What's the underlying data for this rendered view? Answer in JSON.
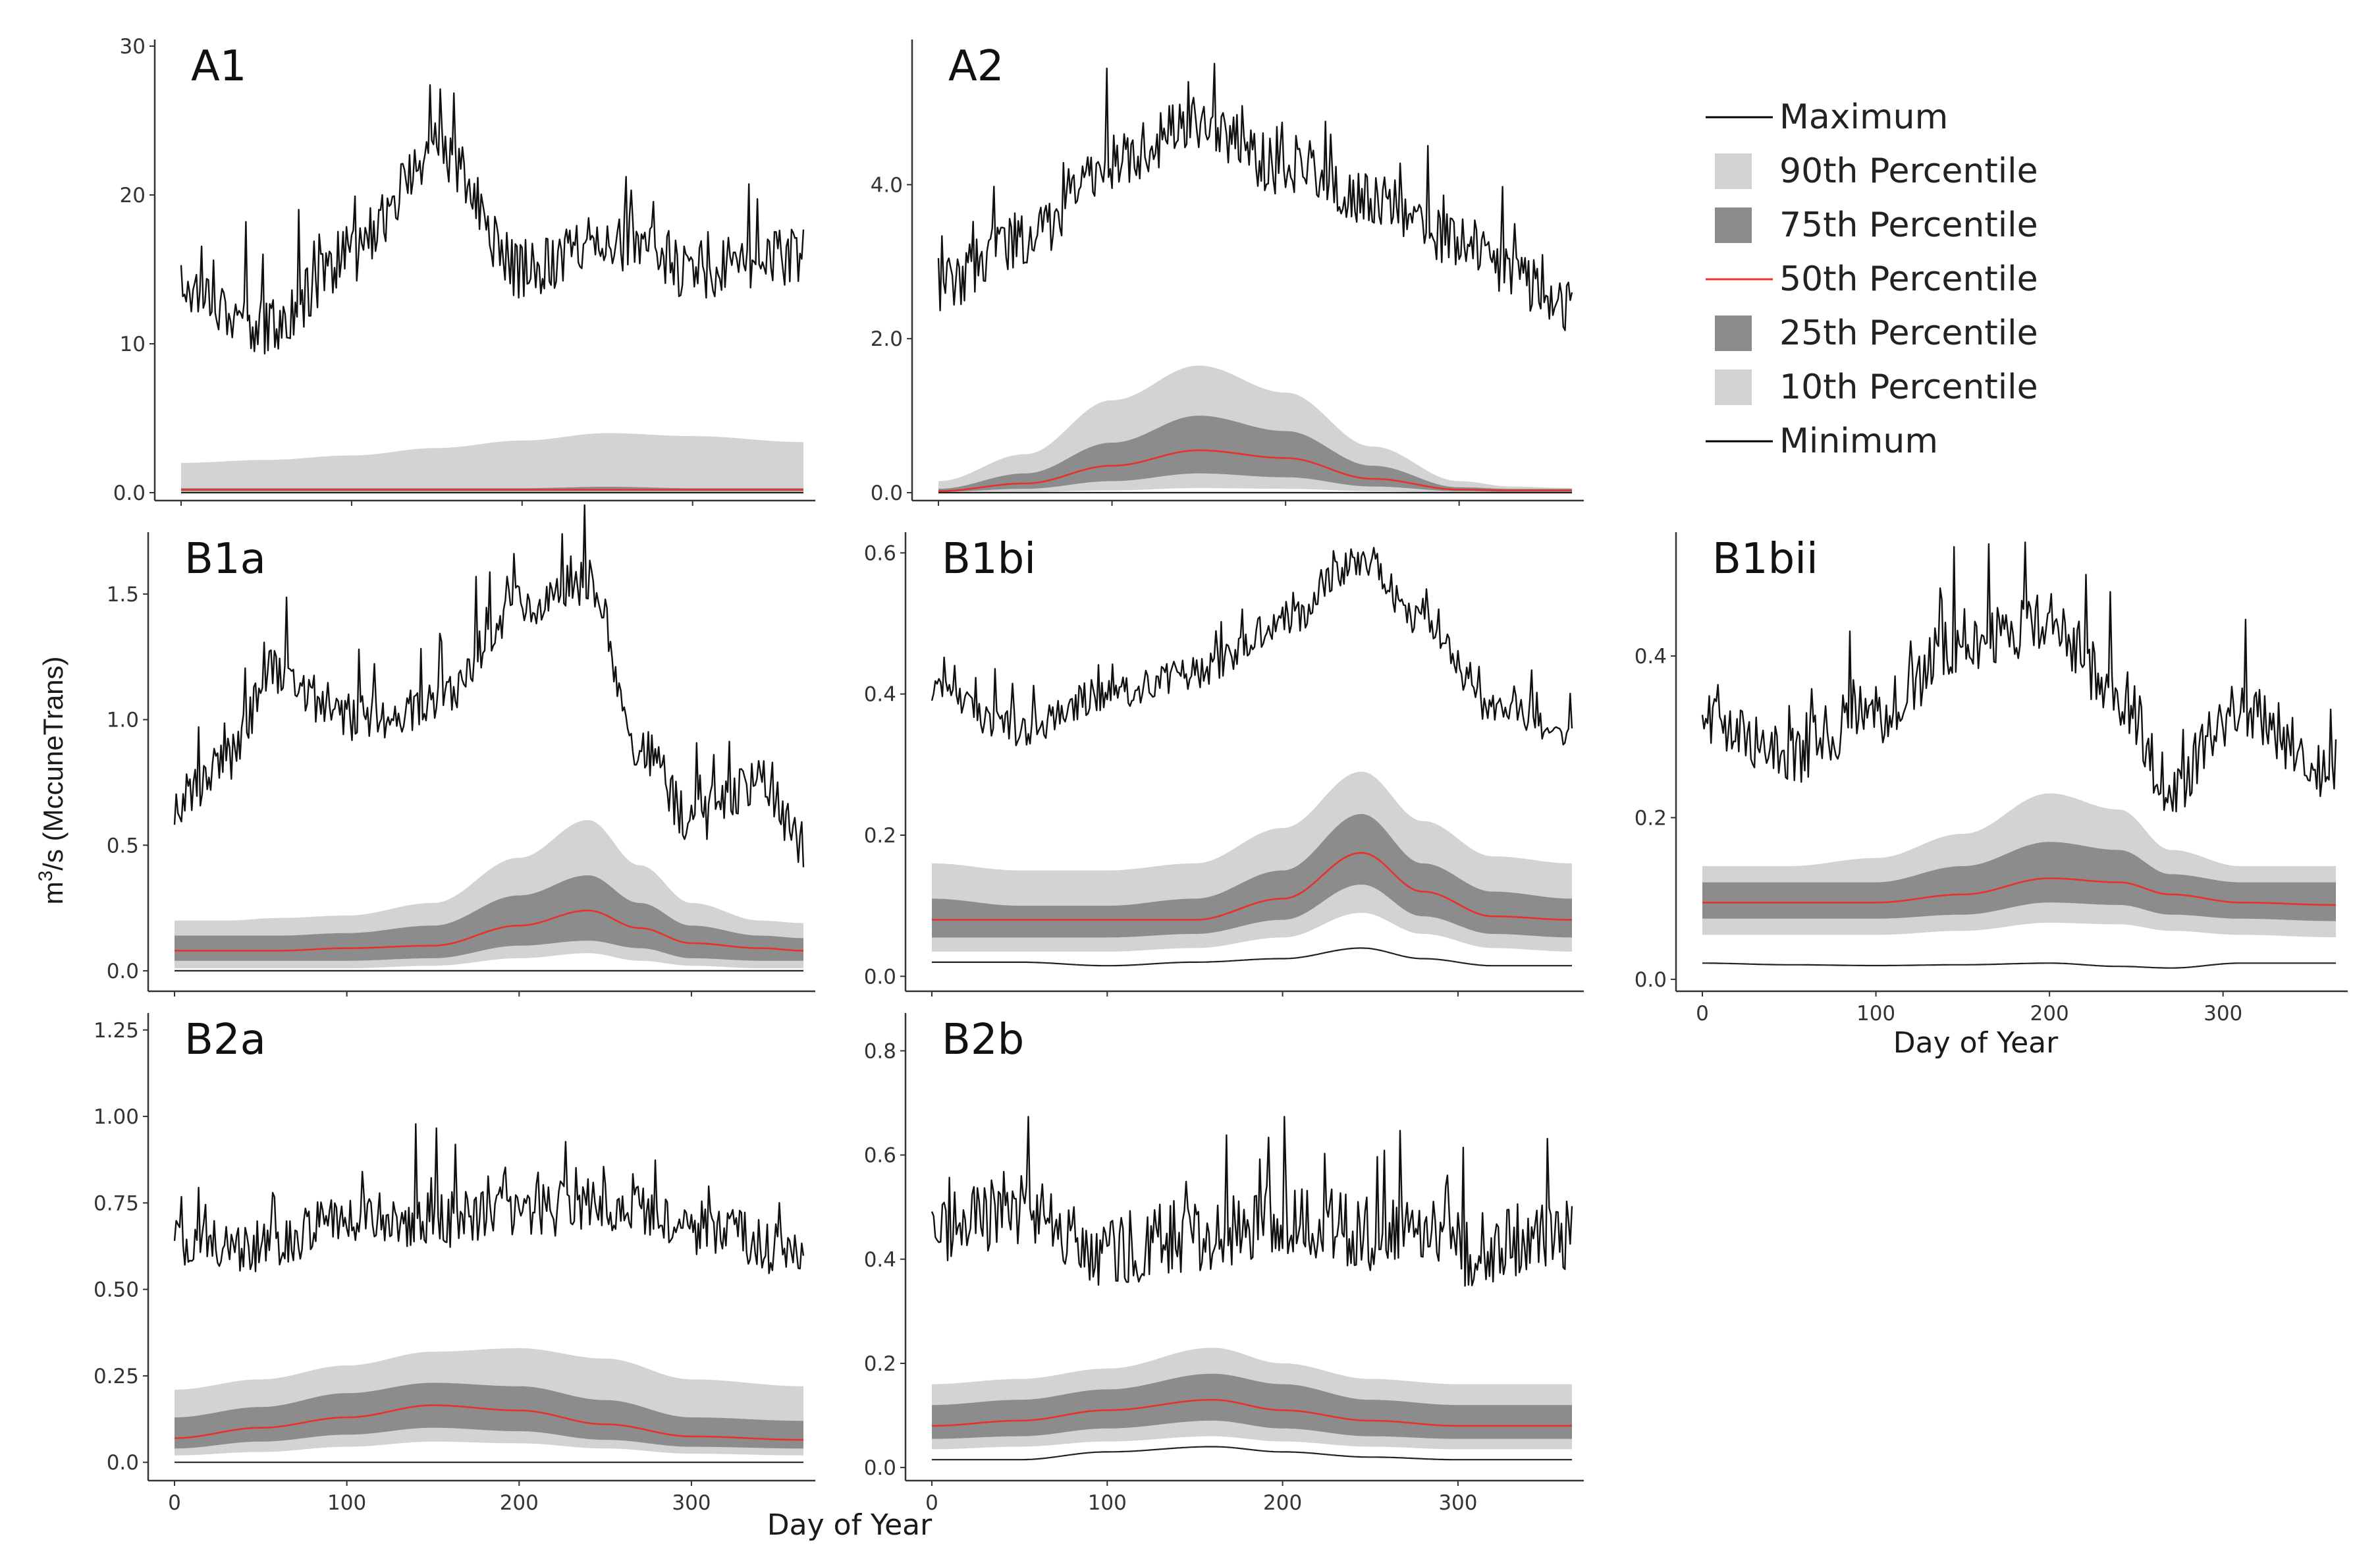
{
  "figure": {
    "ylabel_main": "m",
    "ylabel_sup": "3",
    "ylabel_rest": "/s (MccuneTrans)",
    "xlabel_left": "Day of Year",
    "xlabel_right": "Day of Year"
  },
  "legend": {
    "items": [
      {
        "label": "Maximum",
        "kind": "line",
        "color": "#000000"
      },
      {
        "label": "90th Percentile",
        "kind": "box",
        "color": "#d3d3d3"
      },
      {
        "label": "75th Percentile",
        "kind": "box",
        "color": "#8c8c8c"
      },
      {
        "label": "50th Percentile",
        "kind": "line",
        "color": "#e8312a"
      },
      {
        "label": "25th Percentile",
        "kind": "box",
        "color": "#8c8c8c"
      },
      {
        "label": "10th Percentile",
        "kind": "box",
        "color": "#d3d3d3"
      },
      {
        "label": "Minimum",
        "kind": "line",
        "color": "#000000"
      }
    ]
  },
  "chart_data": [
    {
      "panel": "A1",
      "type": "area",
      "xlabel": "Day of Year",
      "ylabel": "m3/s (MccuneTrans)",
      "xlim": [
        0,
        365
      ],
      "ylim": [
        0,
        30
      ],
      "xticks": [
        0,
        100,
        200,
        300
      ],
      "yticks": [
        0,
        10,
        20,
        30
      ],
      "ytick_labels": [
        "0.0",
        "10",
        "20",
        "30"
      ],
      "x": [
        0,
        50,
        100,
        150,
        200,
        250,
        300,
        365
      ],
      "series": [
        {
          "name": "Maximum",
          "values": [
            14,
            11,
            16,
            23,
            15,
            17,
            15,
            16
          ],
          "noise": 2.5
        },
        {
          "name": "90th Percentile",
          "values": [
            2.0,
            2.2,
            2.5,
            3.0,
            3.5,
            4.0,
            3.8,
            3.4
          ]
        },
        {
          "name": "75th Percentile",
          "values": [
            0.3,
            0.3,
            0.3,
            0.3,
            0.3,
            0.4,
            0.3,
            0.3
          ]
        },
        {
          "name": "50th Percentile",
          "values": [
            0.2,
            0.2,
            0.2,
            0.2,
            0.2,
            0.2,
            0.2,
            0.2
          ]
        },
        {
          "name": "25th Percentile",
          "values": [
            0.1,
            0.1,
            0.1,
            0.1,
            0.1,
            0.1,
            0.1,
            0.1
          ]
        },
        {
          "name": "10th Percentile",
          "values": [
            0.05,
            0.05,
            0.05,
            0.05,
            0.05,
            0.05,
            0.05,
            0.05
          ]
        },
        {
          "name": "Minimum",
          "values": [
            0,
            0,
            0,
            0,
            0,
            0,
            0,
            0
          ]
        }
      ]
    },
    {
      "panel": "A2",
      "type": "area",
      "xlabel": "Day of Year",
      "ylabel": "m3/s (MccuneTrans)",
      "xlim": [
        0,
        365
      ],
      "ylim": [
        0,
        5.8
      ],
      "xticks": [
        0,
        100,
        200,
        300
      ],
      "yticks": [
        0,
        2,
        4
      ],
      "ytick_labels": [
        "0.0",
        "2.0",
        "4.0"
      ],
      "x": [
        0,
        50,
        100,
        150,
        200,
        250,
        300,
        330,
        365
      ],
      "series": [
        {
          "name": "Maximum",
          "values": [
            2.7,
            3.3,
            4.3,
            4.8,
            4.2,
            3.8,
            3.3,
            2.8,
            2.4
          ],
          "noise": 0.45
        },
        {
          "name": "90th Percentile",
          "values": [
            0.15,
            0.5,
            1.2,
            1.65,
            1.3,
            0.6,
            0.15,
            0.08,
            0.06
          ]
        },
        {
          "name": "75th Percentile",
          "values": [
            0.05,
            0.25,
            0.65,
            1.0,
            0.8,
            0.35,
            0.07,
            0.05,
            0.05
          ]
        },
        {
          "name": "50th Percentile",
          "values": [
            0.02,
            0.12,
            0.35,
            0.55,
            0.45,
            0.18,
            0.04,
            0.03,
            0.03
          ]
        },
        {
          "name": "25th Percentile",
          "values": [
            0.01,
            0.05,
            0.15,
            0.25,
            0.2,
            0.08,
            0.02,
            0.01,
            0.01
          ]
        },
        {
          "name": "10th Percentile",
          "values": [
            0,
            0.01,
            0.03,
            0.06,
            0.05,
            0.02,
            0,
            0,
            0
          ]
        },
        {
          "name": "Minimum",
          "values": [
            0,
            0,
            0,
            0,
            0,
            0,
            0,
            0,
            0
          ]
        }
      ]
    },
    {
      "panel": "B1a",
      "type": "area",
      "xlabel": "Day of Year",
      "ylabel": "m3/s (MccuneTrans)",
      "xlim": [
        0,
        365
      ],
      "ylim": [
        -0.05,
        1.72
      ],
      "xticks": [
        0,
        100,
        200,
        300
      ],
      "yticks": [
        0,
        0.5,
        1.0,
        1.5
      ],
      "ytick_labels": [
        "0.0",
        "0.5",
        "1.0",
        "1.5"
      ],
      "x": [
        0,
        30,
        60,
        100,
        150,
        200,
        240,
        270,
        300,
        340,
        365
      ],
      "series": [
        {
          "name": "Maximum",
          "values": [
            0.65,
            0.85,
            1.2,
            1.0,
            1.05,
            1.45,
            1.55,
            0.9,
            0.6,
            0.75,
            0.5
          ],
          "noise": 0.12
        },
        {
          "name": "90th Percentile",
          "values": [
            0.2,
            0.2,
            0.21,
            0.22,
            0.27,
            0.45,
            0.6,
            0.42,
            0.27,
            0.2,
            0.19
          ]
        },
        {
          "name": "75th Percentile",
          "values": [
            0.14,
            0.14,
            0.14,
            0.15,
            0.18,
            0.3,
            0.38,
            0.27,
            0.18,
            0.14,
            0.13
          ]
        },
        {
          "name": "50th Percentile",
          "values": [
            0.08,
            0.08,
            0.08,
            0.09,
            0.1,
            0.18,
            0.24,
            0.17,
            0.11,
            0.09,
            0.08
          ]
        },
        {
          "name": "25th Percentile",
          "values": [
            0.04,
            0.04,
            0.04,
            0.04,
            0.05,
            0.1,
            0.12,
            0.09,
            0.05,
            0.04,
            0.04
          ]
        },
        {
          "name": "10th Percentile",
          "values": [
            0.01,
            0.01,
            0.01,
            0.01,
            0.02,
            0.05,
            0.07,
            0.04,
            0.02,
            0.01,
            0.01
          ]
        },
        {
          "name": "Minimum",
          "values": [
            0,
            0,
            0,
            0,
            0,
            0,
            0,
            0,
            0,
            0,
            0
          ]
        }
      ]
    },
    {
      "panel": "B1bi",
      "type": "area",
      "xlabel": "Day of Year",
      "ylabel": "m3/s (MccuneTrans)",
      "xlim": [
        0,
        365
      ],
      "ylim": [
        -0.01,
        0.62
      ],
      "xticks": [
        0,
        100,
        200,
        300
      ],
      "yticks": [
        0,
        0.2,
        0.4,
        0.6
      ],
      "ytick_labels": [
        "0.0",
        "0.2",
        "0.4",
        "0.6"
      ],
      "x": [
        0,
        50,
        100,
        150,
        200,
        245,
        280,
        320,
        365
      ],
      "series": [
        {
          "name": "Maximum",
          "values": [
            0.4,
            0.35,
            0.4,
            0.43,
            0.5,
            0.59,
            0.5,
            0.38,
            0.35
          ],
          "noise": 0.03
        },
        {
          "name": "90th Percentile",
          "values": [
            0.16,
            0.15,
            0.15,
            0.16,
            0.21,
            0.29,
            0.22,
            0.17,
            0.16
          ]
        },
        {
          "name": "75th Percentile",
          "values": [
            0.11,
            0.1,
            0.1,
            0.11,
            0.15,
            0.23,
            0.16,
            0.12,
            0.11
          ]
        },
        {
          "name": "50th Percentile",
          "values": [
            0.08,
            0.08,
            0.08,
            0.08,
            0.11,
            0.175,
            0.12,
            0.085,
            0.08
          ]
        },
        {
          "name": "25th Percentile",
          "values": [
            0.055,
            0.055,
            0.055,
            0.06,
            0.08,
            0.13,
            0.085,
            0.06,
            0.055
          ]
        },
        {
          "name": "10th Percentile",
          "values": [
            0.035,
            0.035,
            0.035,
            0.04,
            0.055,
            0.09,
            0.06,
            0.04,
            0.035
          ]
        },
        {
          "name": "Minimum",
          "values": [
            0.02,
            0.02,
            0.015,
            0.02,
            0.025,
            0.04,
            0.025,
            0.015,
            0.015
          ]
        }
      ]
    },
    {
      "panel": "B1bii",
      "type": "area",
      "xlabel": "Day of Year",
      "ylabel": "m3/s (MccuneTrans)",
      "xlim": [
        0,
        365
      ],
      "ylim": [
        -0.005,
        0.545
      ],
      "xticks": [
        0,
        100,
        200,
        300
      ],
      "yticks": [
        0,
        0.2,
        0.4
      ],
      "ytick_labels": [
        "0.0",
        "0.2",
        "0.4"
      ],
      "x": [
        0,
        50,
        100,
        150,
        200,
        240,
        270,
        310,
        365
      ],
      "series": [
        {
          "name": "Maximum",
          "values": [
            0.33,
            0.28,
            0.33,
            0.42,
            0.44,
            0.35,
            0.24,
            0.33,
            0.26
          ],
          "noise": 0.05
        },
        {
          "name": "90th Percentile",
          "values": [
            0.14,
            0.14,
            0.15,
            0.18,
            0.23,
            0.21,
            0.16,
            0.14,
            0.14
          ]
        },
        {
          "name": "75th Percentile",
          "values": [
            0.12,
            0.12,
            0.12,
            0.14,
            0.17,
            0.16,
            0.13,
            0.12,
            0.12
          ]
        },
        {
          "name": "50th Percentile",
          "values": [
            0.095,
            0.095,
            0.095,
            0.105,
            0.125,
            0.12,
            0.105,
            0.095,
            0.092
          ]
        },
        {
          "name": "25th Percentile",
          "values": [
            0.075,
            0.075,
            0.075,
            0.08,
            0.095,
            0.092,
            0.08,
            0.075,
            0.072
          ]
        },
        {
          "name": "10th Percentile",
          "values": [
            0.055,
            0.055,
            0.055,
            0.06,
            0.07,
            0.068,
            0.06,
            0.055,
            0.052
          ]
        },
        {
          "name": "Minimum",
          "values": [
            0.02,
            0.018,
            0.017,
            0.018,
            0.02,
            0.016,
            0.014,
            0.02,
            0.02
          ]
        }
      ]
    },
    {
      "panel": "B2a",
      "type": "area",
      "xlabel": "Day of Year",
      "ylabel": "m3/s (MccuneTrans)",
      "xlim": [
        0,
        365
      ],
      "ylim": [
        -0.03,
        1.28
      ],
      "xticks": [
        0,
        100,
        200,
        300
      ],
      "yticks": [
        0,
        0.25,
        0.5,
        0.75,
        1.0,
        1.25
      ],
      "ytick_labels": [
        "0.0",
        "0.25",
        "0.50",
        "0.75",
        "1.00",
        "1.25"
      ],
      "x": [
        0,
        50,
        100,
        150,
        200,
        250,
        300,
        365
      ],
      "series": [
        {
          "name": "Maximum",
          "values": [
            0.62,
            0.62,
            0.7,
            0.7,
            0.72,
            0.75,
            0.68,
            0.6
          ],
          "noise": 0.1
        },
        {
          "name": "90th Percentile",
          "values": [
            0.21,
            0.24,
            0.28,
            0.32,
            0.33,
            0.3,
            0.24,
            0.22
          ]
        },
        {
          "name": "75th Percentile",
          "values": [
            0.13,
            0.16,
            0.2,
            0.23,
            0.22,
            0.18,
            0.13,
            0.12
          ]
        },
        {
          "name": "50th Percentile",
          "values": [
            0.07,
            0.1,
            0.13,
            0.165,
            0.15,
            0.11,
            0.075,
            0.065
          ]
        },
        {
          "name": "25th Percentile",
          "values": [
            0.04,
            0.06,
            0.08,
            0.1,
            0.09,
            0.065,
            0.045,
            0.04
          ]
        },
        {
          "name": "10th Percentile",
          "values": [
            0.02,
            0.03,
            0.045,
            0.06,
            0.055,
            0.04,
            0.025,
            0.02
          ]
        },
        {
          "name": "Minimum",
          "values": [
            0,
            0,
            0,
            0,
            0,
            0,
            0,
            0
          ]
        }
      ]
    },
    {
      "panel": "B2b",
      "type": "area",
      "xlabel": "Day of Year",
      "ylabel": "m3/s (MccuneTrans)",
      "xlim": [
        0,
        365
      ],
      "ylim": [
        -0.01,
        0.86
      ],
      "xticks": [
        0,
        100,
        200,
        300
      ],
      "yticks": [
        0,
        0.2,
        0.4,
        0.6,
        0.8
      ],
      "ytick_labels": [
        "0.0",
        "0.2",
        "0.4",
        "0.6",
        "0.8"
      ],
      "x": [
        0,
        50,
        100,
        160,
        200,
        250,
        300,
        365
      ],
      "series": [
        {
          "name": "Maximum",
          "values": [
            0.45,
            0.5,
            0.42,
            0.45,
            0.48,
            0.45,
            0.42,
            0.45
          ],
          "noise": 0.09
        },
        {
          "name": "90th Percentile",
          "values": [
            0.16,
            0.17,
            0.19,
            0.23,
            0.2,
            0.17,
            0.16,
            0.16
          ]
        },
        {
          "name": "75th Percentile",
          "values": [
            0.12,
            0.13,
            0.15,
            0.18,
            0.16,
            0.13,
            0.12,
            0.12
          ]
        },
        {
          "name": "50th Percentile",
          "values": [
            0.08,
            0.09,
            0.11,
            0.13,
            0.11,
            0.09,
            0.08,
            0.08
          ]
        },
        {
          "name": "25th Percentile",
          "values": [
            0.055,
            0.06,
            0.075,
            0.09,
            0.075,
            0.06,
            0.055,
            0.055
          ]
        },
        {
          "name": "10th Percentile",
          "values": [
            0.035,
            0.04,
            0.05,
            0.06,
            0.05,
            0.04,
            0.035,
            0.035
          ]
        },
        {
          "name": "Minimum",
          "values": [
            0.015,
            0.015,
            0.03,
            0.04,
            0.03,
            0.02,
            0.015,
            0.015
          ]
        }
      ]
    }
  ]
}
